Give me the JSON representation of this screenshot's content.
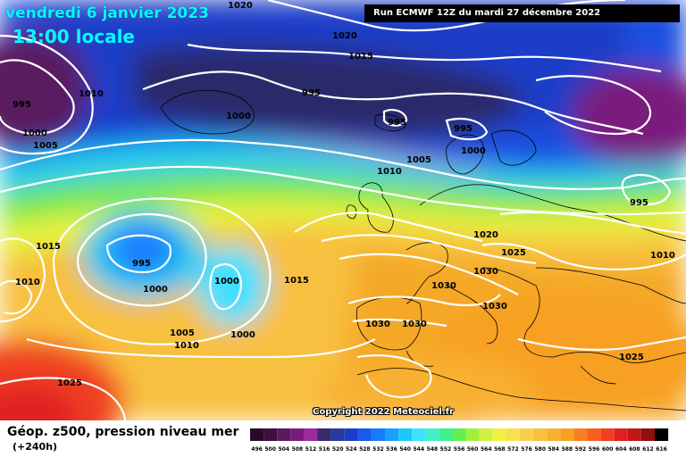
{
  "header": {
    "date_title": "vendredi 6 janvier 2023",
    "time_title": "13:00 locale",
    "run_info": "Run ECMWF 12Z du mardi 27 décembre 2022"
  },
  "footer": {
    "field_title": "Géop. z500, pression niveau mer",
    "forecast_hour": "(+240h)",
    "copyright": "Copyright 2022 Meteociel.fr"
  },
  "legend": {
    "values": [
      "496",
      "500",
      "504",
      "508",
      "512",
      "516",
      "520",
      "524",
      "528",
      "532",
      "536",
      "540",
      "544",
      "548",
      "552",
      "556",
      "560",
      "564",
      "568",
      "572",
      "576",
      "580",
      "584",
      "588",
      "592",
      "596",
      "600",
      "604",
      "608",
      "612",
      "616"
    ],
    "colors": [
      "#2a0a2a",
      "#3e0f40",
      "#5a1a5e",
      "#7a1a7e",
      "#9c2aa0",
      "#3a2a6e",
      "#283a9c",
      "#1a3ec8",
      "#1a5ae8",
      "#1a7aff",
      "#1aa0ff",
      "#1ac8ff",
      "#40e0ff",
      "#40f0c8",
      "#40f090",
      "#60f050",
      "#a0f040",
      "#d0f040",
      "#f0f040",
      "#f8e050",
      "#f8d050",
      "#f8c040",
      "#f8b030",
      "#f8a020",
      "#f88020",
      "#f86020",
      "#f04020",
      "#e02020",
      "#c01818",
      "#901010",
      "#000000"
    ]
  },
  "isobar_labels": [
    {
      "text": "1020",
      "pos": "top"
    },
    {
      "text": "1020",
      "pos": "north-atlantic"
    },
    {
      "text": "1015",
      "pos": "north-atlantic"
    },
    {
      "text": "1010",
      "pos": "greenland-west"
    },
    {
      "text": "995",
      "pos": "west"
    },
    {
      "text": "1000",
      "pos": "west"
    },
    {
      "text": "1005",
      "pos": "west"
    },
    {
      "text": "995",
      "pos": "iceland"
    },
    {
      "text": "1000",
      "pos": "greenland"
    },
    {
      "text": "995",
      "pos": "norwegian-sea"
    },
    {
      "text": "995",
      "pos": "scandinavia"
    },
    {
      "text": "1000",
      "pos": "scandinavia"
    },
    {
      "text": "1005",
      "pos": "north-sea"
    },
    {
      "text": "1010",
      "pos": "north-sea"
    },
    {
      "text": "995",
      "pos": "russia"
    },
    {
      "text": "1015",
      "pos": "atlantic-west"
    },
    {
      "text": "1010",
      "pos": "atlantic-west"
    },
    {
      "text": "995",
      "pos": "low-center"
    },
    {
      "text": "1000",
      "pos": "low"
    },
    {
      "text": "1000",
      "pos": "atlantic"
    },
    {
      "text": "1015",
      "pos": "atlantic"
    },
    {
      "text": "1020",
      "pos": "germany"
    },
    {
      "text": "1025",
      "pos": "alps"
    },
    {
      "text": "1030",
      "pos": "alps"
    },
    {
      "text": "1030",
      "pos": "france"
    },
    {
      "text": "1030",
      "pos": "italy"
    },
    {
      "text": "1010",
      "pos": "east"
    },
    {
      "text": "1030",
      "pos": "spain"
    },
    {
      "text": "1030",
      "pos": "spain"
    },
    {
      "text": "1005",
      "pos": "azores"
    },
    {
      "text": "1010",
      "pos": "azores"
    },
    {
      "text": "1000",
      "pos": "azores"
    },
    {
      "text": "1025",
      "pos": "south-west"
    },
    {
      "text": "1025",
      "pos": "eastern-med"
    }
  ]
}
